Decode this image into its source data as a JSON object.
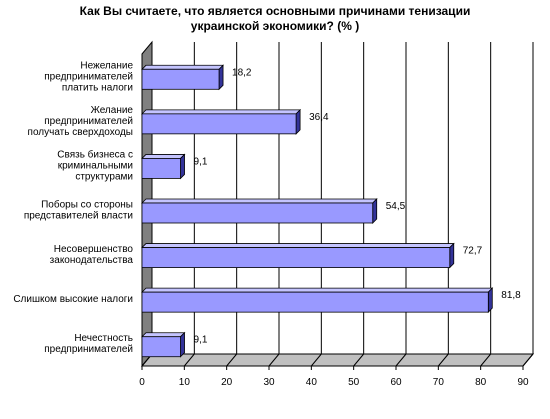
{
  "chart_data": {
    "type": "bar",
    "orientation": "horizontal",
    "three_d": true,
    "title": "Как Вы считаете, что является основными причинами тенизации украинской экономики? (% )",
    "title_lines": [
      "Как Вы считаете, что является основными причинами тенизации",
      "украинской экономики? (% )"
    ],
    "categories": [
      "Нежелание предпринимателей платить налоги",
      "Желание предпринимателей получать сверхдоходы",
      "Связь бизнеса с криминальными структурами",
      "Поборы со стороны представителей власти",
      "Несовершенство законодательства",
      "Слишком высокие налоги",
      "Нечестность предпринимателей"
    ],
    "category_lines": [
      [
        "Нежелание",
        "предпринимателей",
        "платить налоги"
      ],
      [
        "Желание",
        "предпринимателей",
        "получать сверхдоходы"
      ],
      [
        "Связь бизнеса с",
        "криминальными",
        "структурами"
      ],
      [
        "Поборы со стороны",
        "представителей власти"
      ],
      [
        "Несовершенство",
        "законодательства"
      ],
      [
        "Слишком высокие налоги"
      ],
      [
        "Нечестность",
        "предпринимателей"
      ]
    ],
    "values": [
      18.2,
      36.4,
      9.1,
      54.5,
      72.7,
      81.8,
      9.1
    ],
    "value_labels": [
      "18,2",
      "36,4",
      "9,1",
      "54,5",
      "72,7",
      "81,8",
      "9,1"
    ],
    "xlim": [
      0,
      90
    ],
    "xticks": [
      0,
      10,
      20,
      30,
      40,
      50,
      60,
      70,
      80,
      90
    ],
    "grid": true,
    "legend": "none",
    "colors": {
      "bar_front": "#9999ff",
      "bar_top": "#c4c4ff",
      "bar_side": "#333399",
      "wall": "#808080",
      "floor": "#c0c0c0",
      "grid": "#000000"
    }
  }
}
